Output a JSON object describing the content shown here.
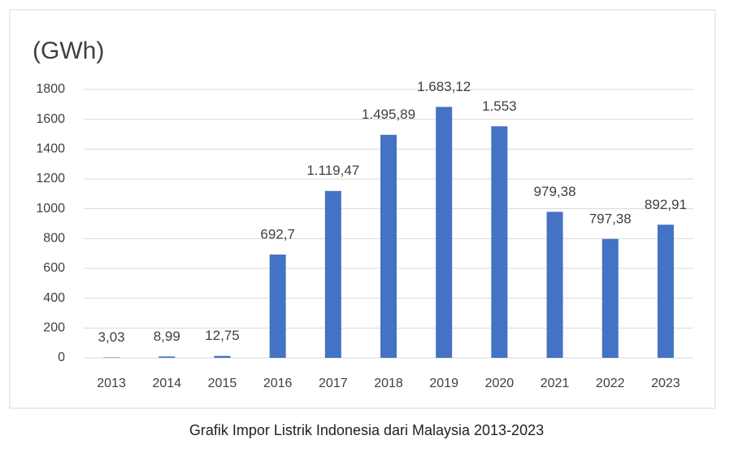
{
  "chart_data": {
    "type": "bar",
    "ylabel": "(GWh)",
    "caption": "Grafik Impor Listrik Indonesia dari Malaysia 2013-2023",
    "categories": [
      "2013",
      "2014",
      "2015",
      "2016",
      "2017",
      "2018",
      "2019",
      "2020",
      "2021",
      "2022",
      "2023"
    ],
    "values": [
      3.03,
      8.99,
      12.75,
      692.7,
      1119.47,
      1495.89,
      1683.12,
      1553,
      979.38,
      797.38,
      892.91
    ],
    "value_labels": [
      "3,03",
      "8,99",
      "12,75",
      "692,7",
      "1.119,47",
      "1.495,89",
      "1.683,12",
      "1.553",
      "979,38",
      "797,38",
      "892,91"
    ],
    "color": "#4472c4",
    "ylim": [
      0,
      1800
    ],
    "yticks": [
      0,
      200,
      400,
      600,
      800,
      1000,
      1200,
      1400,
      1600,
      1800
    ],
    "grid": true
  }
}
